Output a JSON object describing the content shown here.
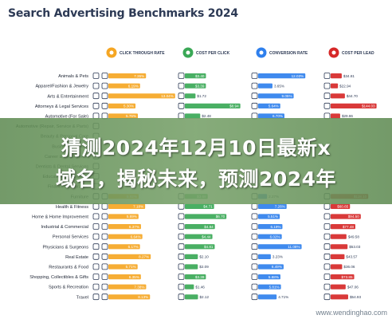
{
  "page": {
    "title": "Search Advertising Benchmarks 2024",
    "banner_line1": "猜测2024年12月10日最新x",
    "banner_line2": "域名，揭秘未来，预测2024年",
    "watermark": "www.wendinghao.com"
  },
  "colors": {
    "ctr": "#f5a623",
    "cpc": "#3aa856",
    "conversion": "#2f80ed",
    "cpl": "#d62828",
    "title": "#2d3a55",
    "banner": "#6f9a60"
  },
  "chart_data": {
    "type": "bar",
    "title": "Search Advertising Benchmarks 2024",
    "categories": [
      "Animals & Pets",
      "Apparel/Fashion & Jewelry",
      "Arts & Entertainment",
      "Attorneys & Legal Services",
      "Automotive (For Sale)",
      "Automotive (Repair, Service & Parts)",
      "Beauty & Personal Care",
      "Business Services",
      "Career & Employment",
      "Dentists & Dental Services",
      "Education & Instruction",
      "Finance & Insurance",
      "Furniture",
      "Health & Fitness",
      "Home & Home Improvement",
      "Industrial & Commercial",
      "Personal Services",
      "Physicians & Surgeons",
      "Real Estate",
      "Restaurants & Food",
      "Shopping, Collectibles & Gifts",
      "Sports & Recreation",
      "Travel"
    ],
    "series": [
      {
        "name": "CLICK THROUGH RATE",
        "icon": "cursor-click-icon",
        "color": "#f5a623",
        "values": [
          7.35,
          6.19,
          13.04,
          5.3,
          5.76,
          null,
          null,
          null,
          null,
          null,
          null,
          null,
          5.92,
          7.18,
          5.89,
          6.37,
          6.64,
          6.17,
          8.27,
          5.71,
          6.35,
          7.38,
          8.13
        ],
        "labels": [
          "7.35%",
          "6.19%",
          "13.04%",
          "5.30%",
          "5.76%",
          "",
          "",
          "",
          "",
          "",
          "",
          "",
          "5.92%",
          "7.18%",
          "5.89%",
          "6.37%",
          "6.64%",
          "6.17%",
          "8.27%",
          "5.71%",
          "6.35%",
          "7.38%",
          "8.13%"
        ],
        "xlim": [
          0,
          14
        ]
      },
      {
        "name": "COST PER CLICK",
        "icon": "dollar-tag-icon",
        "color": "#3aa856",
        "values": [
          3.4,
          3.39,
          1.72,
          8.94,
          2.48,
          null,
          null,
          null,
          null,
          null,
          null,
          null,
          3.68,
          4.71,
          6.7,
          4.84,
          4.44,
          4.81,
          2.1,
          2.09,
          3.39,
          1.46,
          2.12
        ],
        "labels": [
          "$3.40",
          "$3.39",
          "$1.72",
          "$8.94",
          "$2.48",
          "",
          "",
          "",
          "",
          "",
          "",
          "",
          "$3.68",
          "$4.71",
          "$6.70",
          "$4.84",
          "$4.44",
          "$4.81",
          "$2.10",
          "$2.09",
          "$3.39",
          "$1.46",
          "$2.12"
        ],
        "xlim": [
          0,
          9.5
        ]
      },
      {
        "name": "CONVERSION RATE",
        "icon": "conversion-icon",
        "color": "#2f80ed",
        "values": [
          12.03,
          3.65,
          9.05,
          5.64,
          6.7,
          null,
          null,
          null,
          null,
          null,
          null,
          null,
          2.27,
          7.26,
          5.51,
          6.19,
          6.02,
          11.08,
          3.23,
          6.49,
          5.68,
          5.81,
          4.71
        ],
        "labels": [
          "12.03%",
          "3.65%",
          "9.05%",
          "5.64%",
          "6.70%",
          "",
          "",
          "",
          "",
          "",
          "",
          "",
          "2.27%",
          "7.26%",
          "5.51%",
          "6.19%",
          "6.02%",
          "11.08%",
          "3.23%",
          "6.49%",
          "5.68%",
          "5.81%",
          "4.71%"
        ],
        "xlim": [
          0,
          13
        ]
      },
      {
        "name": "COST PER LEAD",
        "icon": "lead-icon",
        "color": "#d62828",
        "values": [
          34.81,
          22.94,
          44.7,
          144.03,
          29.86,
          null,
          null,
          null,
          null,
          null,
          null,
          null,
          118.1,
          60.65,
          94.5,
          77.48,
          49.58,
          53.03,
          43.57,
          36.06,
          73.85,
          47.06,
          54.93
        ],
        "labels": [
          "$34.81",
          "$22.94",
          "$44.70",
          "$144.03",
          "$29.86",
          "",
          "",
          "",
          "",
          "",
          "",
          "",
          "$118.10",
          "$60.65",
          "$94.50",
          "$77.48",
          "$49.58",
          "$53.03",
          "$43.57",
          "$36.06",
          "$73.85",
          "$47.06",
          "$54.93"
        ],
        "xlim": [
          0,
          160
        ]
      }
    ],
    "grid": false,
    "legend": "top"
  }
}
